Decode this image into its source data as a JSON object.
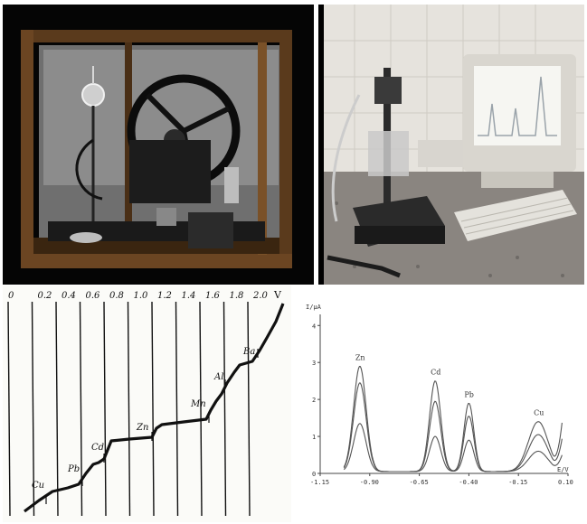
{
  "polarogram": {
    "top_scale": {
      "zero": "0",
      "ticks": [
        "0.2",
        "0.4",
        "0.6",
        "0.8",
        "1.0",
        "1.2",
        "1.4",
        "1.6",
        "1.8",
        "2.0"
      ],
      "unit": "V"
    },
    "wave_labels": [
      "Cu",
      "Pb",
      "Cd",
      "Zn",
      "Mn",
      "Al",
      "Ba"
    ]
  },
  "chart_data": {
    "type": "line",
    "title": "",
    "ylabel": "I/µA",
    "xlabel": "E/V",
    "x_ticks": [
      "-1.15",
      "-0.90",
      "-0.65",
      "-0.40",
      "-0.15",
      "0.10"
    ],
    "y_ticks": [
      "0",
      "1",
      "2",
      "3",
      "4"
    ],
    "xlim": [
      -1.15,
      0.1
    ],
    "ylim": [
      0,
      4.3
    ],
    "peaks": [
      {
        "label": "Zn",
        "x": -0.95,
        "heights": [
          1.3,
          2.4,
          2.85
        ]
      },
      {
        "label": "Cd",
        "x": -0.57,
        "heights": [
          0.95,
          1.9,
          2.45
        ]
      },
      {
        "label": "Pb",
        "x": -0.4,
        "heights": [
          0.85,
          1.5,
          1.85
        ]
      },
      {
        "label": "Cu",
        "x": -0.05,
        "heights": [
          0.55,
          1.0,
          1.35
        ]
      }
    ]
  }
}
